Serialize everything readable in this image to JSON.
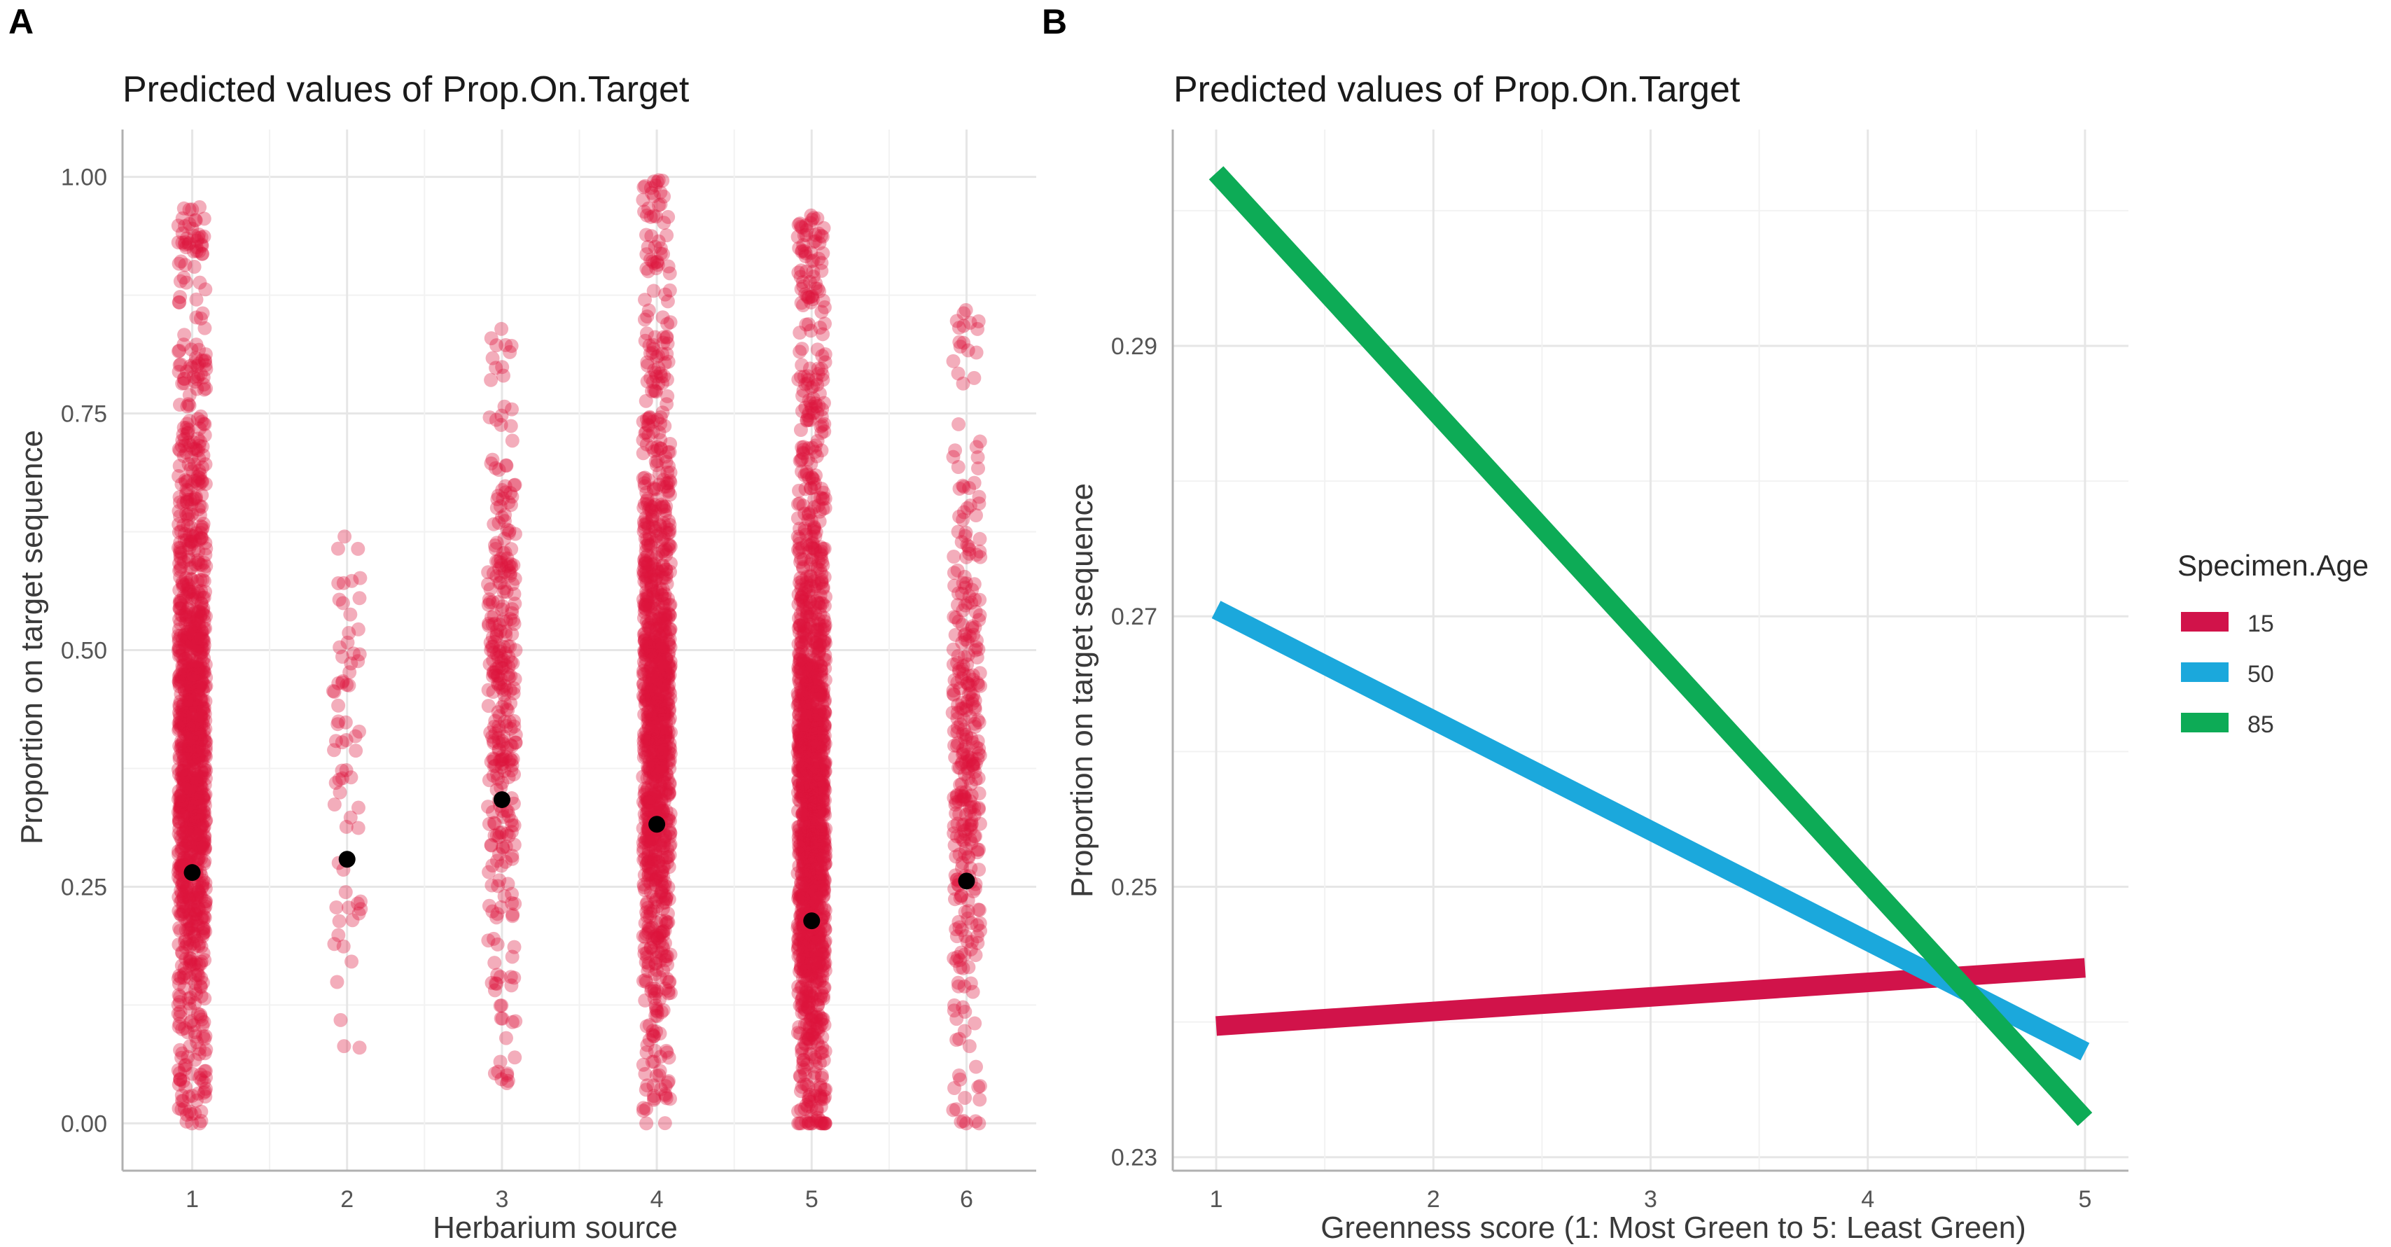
{
  "chart_data": [
    {
      "panel": "A",
      "type": "scatter",
      "title": "Predicted values of Prop.On.Target",
      "xlabel": "Herbarium source",
      "ylabel": "Proportion on target sequence",
      "categories": [
        "1",
        "2",
        "3",
        "4",
        "5",
        "6"
      ],
      "xlim": [
        0.55,
        6.45
      ],
      "ylim": [
        -0.05,
        1.05
      ],
      "y_ticks": [
        0.0,
        0.25,
        0.5,
        0.75,
        1.0
      ],
      "y_tick_labels": [
        "0.00",
        "0.25",
        "0.50",
        "0.75",
        "1.00"
      ],
      "point_color": "#dc143c",
      "predicted_color": "#000000",
      "predicted_values": [
        {
          "x": 1,
          "y": 0.265
        },
        {
          "x": 2,
          "y": 0.279
        },
        {
          "x": 3,
          "y": 0.342
        },
        {
          "x": 4,
          "y": 0.316
        },
        {
          "x": 5,
          "y": 0.214
        },
        {
          "x": 6,
          "y": 0.256
        }
      ],
      "raw_points_per_source": [
        1200,
        70,
        320,
        1100,
        1500,
        340
      ],
      "raw_ranges": [
        [
          0.0,
          0.97
        ],
        [
          0.08,
          0.62
        ],
        [
          0.04,
          0.84
        ],
        [
          0.0,
          1.0
        ],
        [
          0.0,
          0.96
        ],
        [
          0.0,
          0.86
        ]
      ],
      "grid": true
    },
    {
      "panel": "B",
      "type": "line",
      "title": "Predicted values of Prop.On.Target",
      "xlabel": "Greenness score (1: Most Green to 5: Least Green)",
      "ylabel": "Proportion on target sequence",
      "x": [
        1,
        5
      ],
      "x_ticks": [
        1,
        2,
        3,
        4,
        5
      ],
      "xlim": [
        0.8,
        5.2
      ],
      "ylim": [
        0.229,
        0.306
      ],
      "y_ticks": [
        0.23,
        0.25,
        0.27,
        0.29
      ],
      "y_tick_labels": [
        "0.23",
        "0.25",
        "0.27",
        "0.29"
      ],
      "legend_title": "Specimen.Age",
      "legend_position": "right",
      "series": [
        {
          "name": "15",
          "color": "#d1134a",
          "values": [
            0.2397,
            0.244
          ]
        },
        {
          "name": "50",
          "color": "#1ba8dc",
          "values": [
            0.2705,
            0.2378
          ]
        },
        {
          "name": "85",
          "color": "#0dab56",
          "values": [
            0.3028,
            0.2328
          ]
        }
      ],
      "grid": true
    }
  ]
}
